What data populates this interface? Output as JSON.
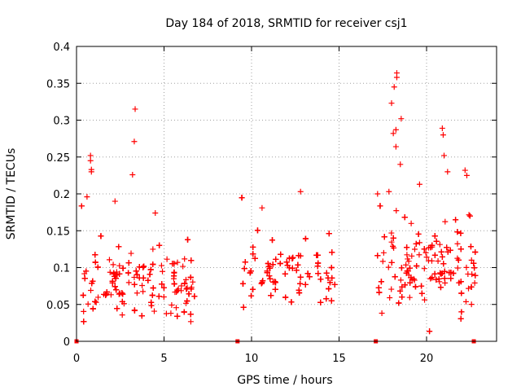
{
  "chart_data": {
    "type": "scatter",
    "title": "Day 184 of 2018, SRMTID for receiver csj1",
    "xlabel": "GPS time / hours",
    "ylabel": "SRMTID / TECUs",
    "xlim": [
      0,
      24
    ],
    "ylim": [
      0,
      0.4
    ],
    "xticks": [
      "0",
      "5",
      "10",
      "15",
      "20"
    ],
    "yticks": [
      "0",
      "0.05",
      "0.1",
      "0.15",
      "0.2",
      "0.25",
      "0.3",
      "0.35",
      "0.4"
    ],
    "grid": true,
    "marker": "plus",
    "color": "#ff0000",
    "segments": [
      {
        "start": 0.0,
        "end": 6.8,
        "median": 0.07,
        "spread": 0.05
      },
      {
        "start": 9.2,
        "end": 14.8,
        "median": 0.085,
        "spread": 0.045
      },
      {
        "start": 17.1,
        "end": 22.8,
        "median": 0.09,
        "spread": 0.06
      }
    ],
    "outliers": [
      {
        "x": 0.8,
        "y": 0.252
      },
      {
        "x": 0.8,
        "y": 0.245
      },
      {
        "x": 0.85,
        "y": 0.233
      },
      {
        "x": 0.85,
        "y": 0.23
      },
      {
        "x": 3.35,
        "y": 0.315
      },
      {
        "x": 3.3,
        "y": 0.271
      },
      {
        "x": 3.2,
        "y": 0.226
      },
      {
        "x": 0.6,
        "y": 0.196
      },
      {
        "x": 2.2,
        "y": 0.19
      },
      {
        "x": 4.5,
        "y": 0.174
      },
      {
        "x": 12.8,
        "y": 0.203
      },
      {
        "x": 10.6,
        "y": 0.181
      },
      {
        "x": 17.2,
        "y": 0.2
      },
      {
        "x": 18.0,
        "y": 0.323
      },
      {
        "x": 18.15,
        "y": 0.345
      },
      {
        "x": 18.3,
        "y": 0.364
      },
      {
        "x": 18.3,
        "y": 0.358
      },
      {
        "x": 18.55,
        "y": 0.302
      },
      {
        "x": 18.25,
        "y": 0.287
      },
      {
        "x": 18.1,
        "y": 0.282
      },
      {
        "x": 18.25,
        "y": 0.264
      },
      {
        "x": 18.5,
        "y": 0.24
      },
      {
        "x": 20.9,
        "y": 0.289
      },
      {
        "x": 20.95,
        "y": 0.28
      },
      {
        "x": 21.0,
        "y": 0.252
      },
      {
        "x": 22.2,
        "y": 0.232
      },
      {
        "x": 22.3,
        "y": 0.225
      },
      {
        "x": 21.2,
        "y": 0.23
      },
      {
        "x": 17.85,
        "y": 0.203
      },
      {
        "x": 19.6,
        "y": 0.213
      }
    ],
    "gap_markers": [
      0.0,
      9.2,
      17.1,
      22.7
    ]
  }
}
